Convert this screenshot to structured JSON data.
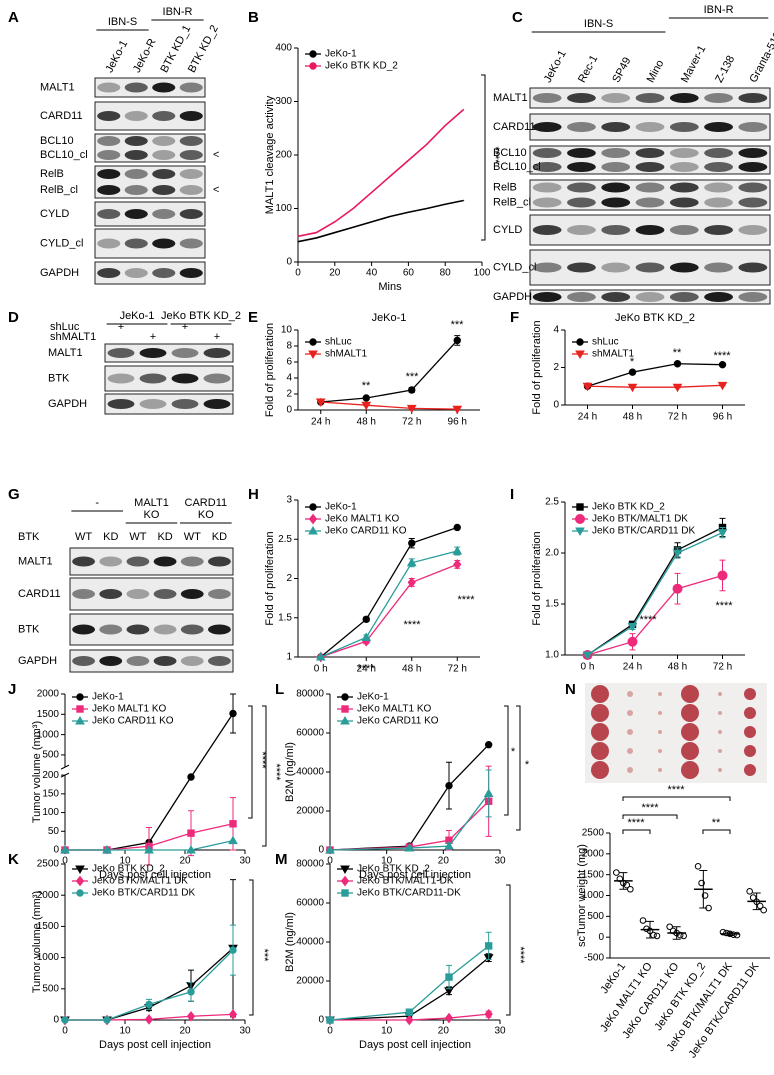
{
  "chart_data": [
    {
      "panel": "B",
      "type": "line",
      "xlabel": "Mins",
      "ylabel": "MALT1 cleavage activity",
      "x": [
        0,
        10,
        20,
        30,
        40,
        50,
        60,
        70,
        80,
        90
      ],
      "xlim": [
        0,
        100
      ],
      "xticks": [
        0,
        20,
        40,
        60,
        80,
        100
      ],
      "ylim": [
        0,
        400
      ],
      "yticks": [
        0,
        100,
        200,
        300,
        400
      ],
      "series": [
        {
          "name": "JeKo-1",
          "color": "#000000",
          "marker": "none",
          "values": [
            38,
            45,
            55,
            65,
            75,
            85,
            93,
            100,
            108,
            115
          ]
        },
        {
          "name": "JeKo BTK KD_2",
          "color": "#e8185f",
          "marker": "none",
          "values": [
            48,
            55,
            75,
            100,
            130,
            160,
            190,
            220,
            255,
            285
          ]
        }
      ],
      "annotations": [
        "****"
      ]
    },
    {
      "panel": "E",
      "type": "line",
      "title": "JeKo-1",
      "ylabel": "Fold of proliferation",
      "categories": [
        "24 h",
        "48 h",
        "72 h",
        "96 h"
      ],
      "ylim": [
        0,
        10
      ],
      "yticks": [
        0,
        2,
        4,
        6,
        8,
        10
      ],
      "series": [
        {
          "name": "shLuc",
          "color": "#000000",
          "marker": "circle",
          "values": [
            1,
            1.5,
            2.5,
            8.7
          ],
          "errors": [
            0.05,
            0.1,
            0.3,
            0.6
          ]
        },
        {
          "name": "shMALT1",
          "color": "#e8231f",
          "marker": "triangle-down",
          "values": [
            1,
            0.6,
            0.2,
            0.1
          ],
          "errors": [
            0.05,
            0.05,
            0.05,
            0.05
          ]
        }
      ],
      "annotations": [
        "**",
        "***",
        "***"
      ]
    },
    {
      "panel": "F",
      "type": "line",
      "title": "JeKo BTK KD_2",
      "ylabel": "Fold of proliferation",
      "categories": [
        "24 h",
        "48 h",
        "72 h",
        "96 h"
      ],
      "ylim": [
        0,
        4
      ],
      "yticks": [
        0,
        2,
        4
      ],
      "series": [
        {
          "name": "shLuc",
          "color": "#000000",
          "marker": "circle",
          "values": [
            1,
            1.75,
            2.2,
            2.15
          ],
          "errors": [
            0.03,
            0.1,
            0.1,
            0.08
          ]
        },
        {
          "name": "shMALT1",
          "color": "#e8231f",
          "marker": "triangle-down",
          "values": [
            1,
            0.95,
            0.95,
            1.05
          ],
          "errors": [
            0.03,
            0.03,
            0.03,
            0.03
          ]
        }
      ],
      "annotations": [
        "*",
        "**",
        "****"
      ]
    },
    {
      "panel": "H",
      "type": "line",
      "ylabel": "Fold of proliferation",
      "categories": [
        "0 h",
        "24 h",
        "48 h",
        "72 h"
      ],
      "ylim": [
        1,
        3
      ],
      "yticks": [
        1,
        1.5,
        2,
        2.5,
        3
      ],
      "series": [
        {
          "name": "JeKo-1",
          "color": "#000000",
          "marker": "circle",
          "values": [
            1,
            1.48,
            2.45,
            2.65
          ],
          "errors": [
            0.01,
            0.03,
            0.06,
            0.02
          ]
        },
        {
          "name": "JeKo MALT1 KO",
          "color": "#ee2a7b",
          "marker": "diamond",
          "values": [
            1,
            1.2,
            1.95,
            2.18
          ],
          "errors": [
            0.01,
            0.03,
            0.05,
            0.05
          ]
        },
        {
          "name": "JeKo CARD11 KO",
          "color": "#2a9d9a",
          "marker": "triangle",
          "values": [
            1,
            1.25,
            2.2,
            2.35
          ],
          "errors": [
            0.01,
            0.03,
            0.05,
            0.05
          ]
        }
      ],
      "annotations": [
        "****",
        "****",
        "****"
      ]
    },
    {
      "panel": "I",
      "type": "line",
      "ylabel": "Fold of proliferation",
      "categories": [
        "0 h",
        "24 h",
        "48 h",
        "72 h"
      ],
      "ylim": [
        1,
        2.5
      ],
      "yticks": [
        {
          "value": 1,
          "label": "1.0"
        },
        1.5,
        {
          "value": 2,
          "label": "2.0"
        },
        2.5
      ],
      "series": [
        {
          "name": "JeKo BTK KD_2",
          "color": "#000000",
          "marker": "square",
          "values": [
            1,
            1.3,
            2.03,
            2.25
          ],
          "errors": [
            0.01,
            0.03,
            0.07,
            0.09
          ]
        },
        {
          "name": "JeKo BTK/MALT1 DK",
          "color": "#ee2a7b",
          "marker": "circle-big",
          "values": [
            1,
            1.13,
            1.65,
            1.78
          ],
          "errors": [
            0.01,
            0.08,
            0.15,
            0.15
          ]
        },
        {
          "name": "JeKo BTK/CARD11 DK",
          "color": "#2a9d9a",
          "marker": "triangle-down",
          "values": [
            1,
            1.28,
            2.0,
            2.2
          ],
          "errors": [
            0.01,
            0.03,
            0.05,
            0.05
          ]
        }
      ],
      "annotations": [
        "****",
        "****"
      ]
    },
    {
      "panel": "J",
      "type": "line",
      "xlabel": "Days post cell injection",
      "ylabel": "Tumor volume (mm³)",
      "x": [
        0,
        7,
        14,
        21,
        28
      ],
      "xlim": [
        0,
        30
      ],
      "xticks": [
        0,
        10,
        20,
        30
      ],
      "ylim": [
        0,
        2000
      ],
      "ybreak": 200,
      "yticks": [
        0,
        50,
        100,
        150,
        200,
        500,
        1000,
        1500,
        2000
      ],
      "series": [
        {
          "name": "JeKo-1",
          "color": "#000000",
          "marker": "circle",
          "values": [
            0,
            0,
            20,
            195,
            1520
          ],
          "errors": [
            0,
            0,
            5,
            0,
            480
          ]
        },
        {
          "name": "JeKo MALT1 KO",
          "color": "#ee2a7b",
          "marker": "square",
          "values": [
            0,
            0,
            10,
            45,
            70
          ],
          "errors": [
            0,
            0,
            50,
            60,
            70
          ]
        },
        {
          "name": "JeKo CARD11 KO",
          "color": "#2a9d9a",
          "marker": "triangle",
          "values": [
            0,
            0,
            0,
            0,
            25
          ],
          "errors": [
            0,
            0,
            0,
            0,
            0
          ]
        }
      ],
      "annotations": [
        "****",
        "****"
      ]
    },
    {
      "panel": "K",
      "type": "line",
      "xlabel": "Days post cell injection",
      "ylabel": "Tumor volume (mm³)",
      "x": [
        0,
        7,
        14,
        21,
        28
      ],
      "xlim": [
        0,
        30
      ],
      "xticks": [
        0,
        10,
        20,
        30
      ],
      "ylim": [
        0,
        2500
      ],
      "yticks": [
        0,
        500,
        1000,
        1500,
        2000,
        2500
      ],
      "series": [
        {
          "name": "JeKo BTK KD_2",
          "color": "#000000",
          "marker": "triangle-down",
          "values": [
            0,
            0,
            200,
            550,
            1150
          ],
          "errors": [
            0,
            0,
            50,
            250,
            1100
          ]
        },
        {
          "name": "JeKo BTK/MALT1 DK",
          "color": "#ee2a7b",
          "marker": "diamond",
          "values": [
            0,
            0,
            10,
            60,
            90
          ],
          "errors": [
            0,
            0,
            5,
            20,
            20
          ]
        },
        {
          "name": "JeKo BTK/CARD11 DK",
          "color": "#2a9d9a",
          "marker": "circle",
          "values": [
            0,
            0,
            250,
            450,
            1120
          ],
          "errors": [
            0,
            0,
            80,
            150,
            400
          ]
        }
      ],
      "annotations": [
        "***"
      ]
    },
    {
      "panel": "L",
      "type": "line",
      "xlabel": "Days post cell injection",
      "ylabel": "B2M (ng/ml)",
      "x": [
        0,
        14,
        21,
        28
      ],
      "xlim": [
        0,
        30
      ],
      "xticks": [
        0,
        10,
        20,
        30
      ],
      "ylim": [
        0,
        80000
      ],
      "yticks": [
        0,
        20000,
        40000,
        60000,
        80000
      ],
      "series": [
        {
          "name": "JeKo-1",
          "color": "#000000",
          "marker": "circle",
          "values": [
            0,
            2000,
            33000,
            54000
          ],
          "errors": [
            0,
            500,
            12000,
            0
          ]
        },
        {
          "name": "JeKo MALT1 KO",
          "color": "#ee2a7b",
          "marker": "square",
          "values": [
            0,
            1500,
            5000,
            25000
          ],
          "errors": [
            0,
            500,
            5000,
            18000
          ]
        },
        {
          "name": "JeKo CARD11 KO",
          "color": "#2a9d9a",
          "marker": "triangle",
          "values": [
            0,
            1000,
            2000,
            29000
          ],
          "errors": [
            0,
            500,
            1500,
            12000
          ]
        }
      ],
      "annotations": [
        "*",
        "*"
      ]
    },
    {
      "panel": "M",
      "type": "line",
      "xlabel": "Days post cell injection",
      "ylabel": "B2M (ng/ml)",
      "x": [
        0,
        14,
        21,
        28
      ],
      "xlim": [
        0,
        30
      ],
      "xticks": [
        0,
        10,
        20,
        30
      ],
      "ylim": [
        0,
        80000
      ],
      "yticks": [
        0,
        20000,
        40000,
        60000,
        80000
      ],
      "series": [
        {
          "name": "JeKo BTK KD_2",
          "color": "#000000",
          "marker": "triangle-down",
          "values": [
            0,
            2000,
            15000,
            32000
          ],
          "errors": [
            0,
            500,
            2000,
            2000
          ]
        },
        {
          "name": "JeKo BTK/MALT1-DK",
          "color": "#ee2a7b",
          "marker": "diamond",
          "values": [
            0,
            0,
            1000,
            3000
          ],
          "errors": [
            0,
            0,
            500,
            1500
          ]
        },
        {
          "name": "JeKo BTK/CARD11-DK",
          "color": "#2a9d9a",
          "marker": "square",
          "values": [
            0,
            4000,
            22000,
            38000
          ],
          "errors": [
            0,
            1000,
            6000,
            7000
          ]
        }
      ],
      "annotations": [
        "****"
      ]
    },
    {
      "panel": "N",
      "type": "dot",
      "ylabel": "scTumor weight (mg)",
      "categories": [
        "JeKo-1",
        "JeKo MALT1 KO",
        "JeKo CARD11 KO",
        "JeKo BTK KD_2",
        "JeKo BTK/MALT1 DK",
        "JeKo BTK/CARD11 DK"
      ],
      "values": [
        1350,
        180,
        100,
        1150,
        80,
        860
      ],
      "errors": [
        200,
        200,
        150,
        450,
        40,
        200
      ],
      "points": [
        [
          1550,
          1400,
          1300,
          1250,
          1150
        ],
        [
          400,
          200,
          150,
          50,
          30
        ],
        [
          250,
          150,
          100,
          50,
          30
        ],
        [
          1700,
          1300,
          1000,
          700
        ],
        [
          120,
          100,
          80,
          60,
          50
        ],
        [
          1100,
          950,
          850,
          750,
          650
        ]
      ],
      "color": "#000000",
      "ylim": [
        -500,
        2500
      ],
      "yticks": [
        -500,
        0,
        500,
        1000,
        1500,
        2000,
        2500
      ],
      "annotations": [
        "****",
        "****",
        "****",
        "**"
      ]
    }
  ],
  "blots": [
    {
      "panel": "A",
      "groups": [
        [
          "IBN-S"
        ],
        [
          "IBN-R"
        ]
      ],
      "columns": [
        "JeKo-1",
        "JeKo-R",
        "BTK KD_1",
        "BTK KD_2"
      ],
      "rows": [
        {
          "labels": [
            "MALT1"
          ]
        },
        {
          "labels": [
            "CARD11"
          ]
        },
        {
          "labels": [
            "BCL10",
            "BCL10_cl"
          ],
          "arrow": "<"
        },
        {
          "labels": [
            "RelB",
            "RelB_cl"
          ],
          "arrow": "<"
        },
        {
          "labels": [
            "CYLD"
          ]
        },
        {
          "labels": [
            "CYLD_cl"
          ]
        },
        {
          "labels": [
            "GAPDH"
          ]
        }
      ]
    },
    {
      "panel": "C",
      "groups": [
        [
          "IBN-S"
        ],
        [
          "IBN-R"
        ]
      ],
      "columns": [
        "JeKo-1",
        "Rec-1",
        "SP49",
        "Mino",
        "Maver-1",
        "Z-138",
        "Granta-519"
      ],
      "rows": [
        {
          "labels": [
            "MALT1"
          ]
        },
        {
          "labels": [
            "CARD11"
          ]
        },
        {
          "labels": [
            "BCL10",
            "BCL10_cl"
          ],
          "arrow": "<"
        },
        {
          "labels": [
            "RelB",
            "RelB_cl"
          ],
          "arrow": "<"
        },
        {
          "labels": [
            "CYLD"
          ]
        },
        {
          "labels": [
            "CYLD_cl"
          ]
        },
        {
          "labels": [
            "GAPDH"
          ]
        }
      ]
    },
    {
      "panel": "D",
      "groups": [
        [
          "JeKo-1"
        ],
        [
          "JeKo BTK KD_2"
        ]
      ],
      "treatments": [
        {
          "label": "shLuc",
          "marks": [
            "+",
            "+"
          ]
        },
        {
          "label": "shMALT1",
          "marks": [
            "+",
            "+"
          ]
        }
      ],
      "rows": [
        {
          "labels": [
            "MALT1"
          ]
        },
        {
          "labels": [
            "BTK"
          ]
        },
        {
          "labels": [
            "GAPDH"
          ]
        }
      ]
    },
    {
      "panel": "G",
      "groups": [
        [
          "-"
        ],
        [
          "MALT1",
          "KO"
        ],
        [
          "CARD11",
          "KO"
        ]
      ],
      "genotype": {
        "label": "BTK",
        "values": [
          "WT",
          "KD",
          "WT",
          "KD",
          "WT",
          "KD"
        ]
      },
      "rows": [
        {
          "labels": [
            "MALT1"
          ]
        },
        {
          "labels": [
            "CARD11"
          ]
        },
        {
          "labels": [
            "BTK"
          ]
        },
        {
          "labels": [
            "GAPDH"
          ]
        }
      ]
    }
  ]
}
